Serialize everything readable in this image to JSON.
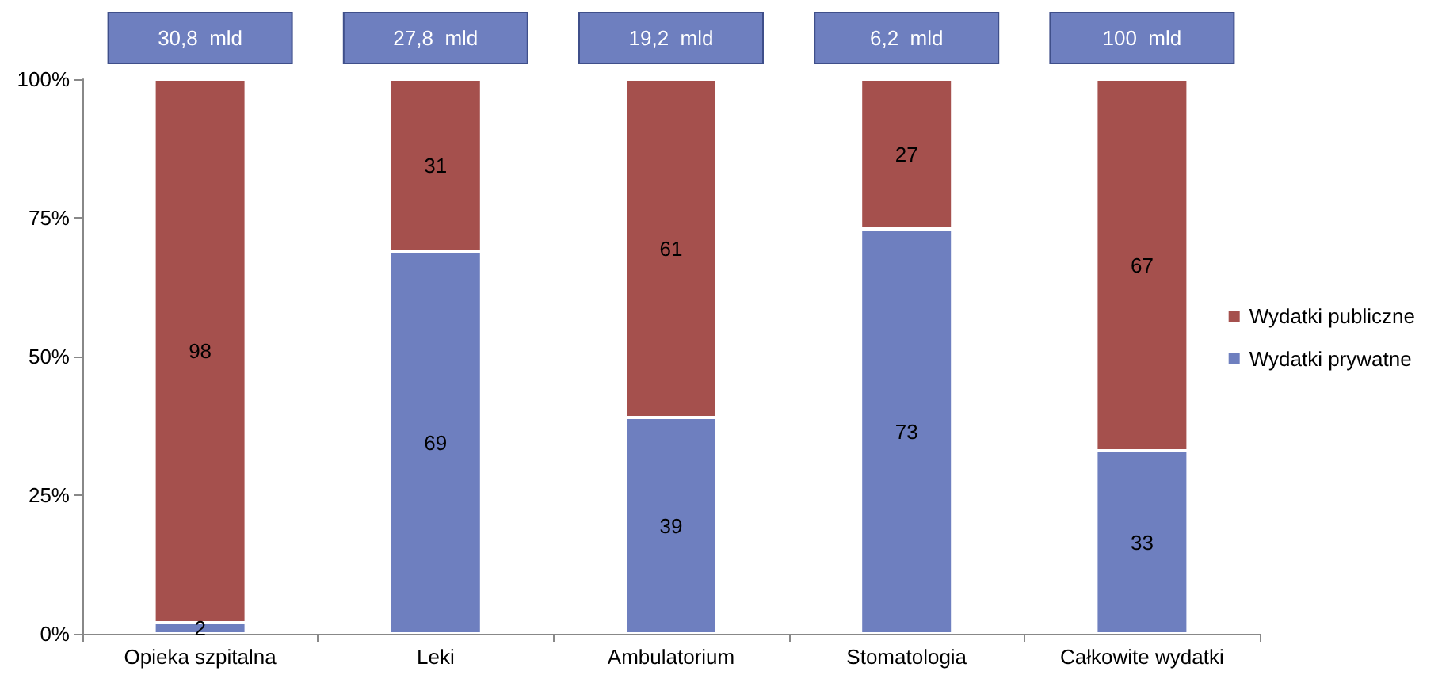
{
  "chart_data": {
    "type": "bar",
    "stacked": true,
    "categories": [
      "Opieka szpitalna",
      "Leki",
      "Ambulatorium",
      "Stomatologia",
      "Całkowite wydatki"
    ],
    "series": [
      {
        "name": "Wydatki prywatne",
        "color": "#6e7fbf",
        "values": [
          2,
          69,
          39,
          73,
          33
        ]
      },
      {
        "name": "Wydatki publiczne",
        "color": "#a5504d",
        "values": [
          98,
          31,
          61,
          27,
          67
        ]
      }
    ],
    "ylim": [
      0,
      100
    ],
    "yticks": [
      {
        "value": 0,
        "label": "0%"
      },
      {
        "value": 25,
        "label": "25%"
      },
      {
        "value": 50,
        "label": "50%"
      },
      {
        "value": 75,
        "label": "75%"
      },
      {
        "value": 100,
        "label": "100%"
      }
    ],
    "data_labels": true,
    "legend": "right",
    "annotations": [
      {
        "text": "30,8  mld",
        "x": "Opieka szpitalna",
        "y": 100
      },
      {
        "text": "27,8  mld",
        "x": "Leki",
        "y": 100
      },
      {
        "text": "19,2  mld",
        "x": "Ambulatorium",
        "y": 100
      },
      {
        "text": "6,2  mld",
        "x": "Stomatologia",
        "y": 100
      },
      {
        "text": "100  mld",
        "x": "Całkowite wydatki",
        "y": 100
      }
    ]
  }
}
